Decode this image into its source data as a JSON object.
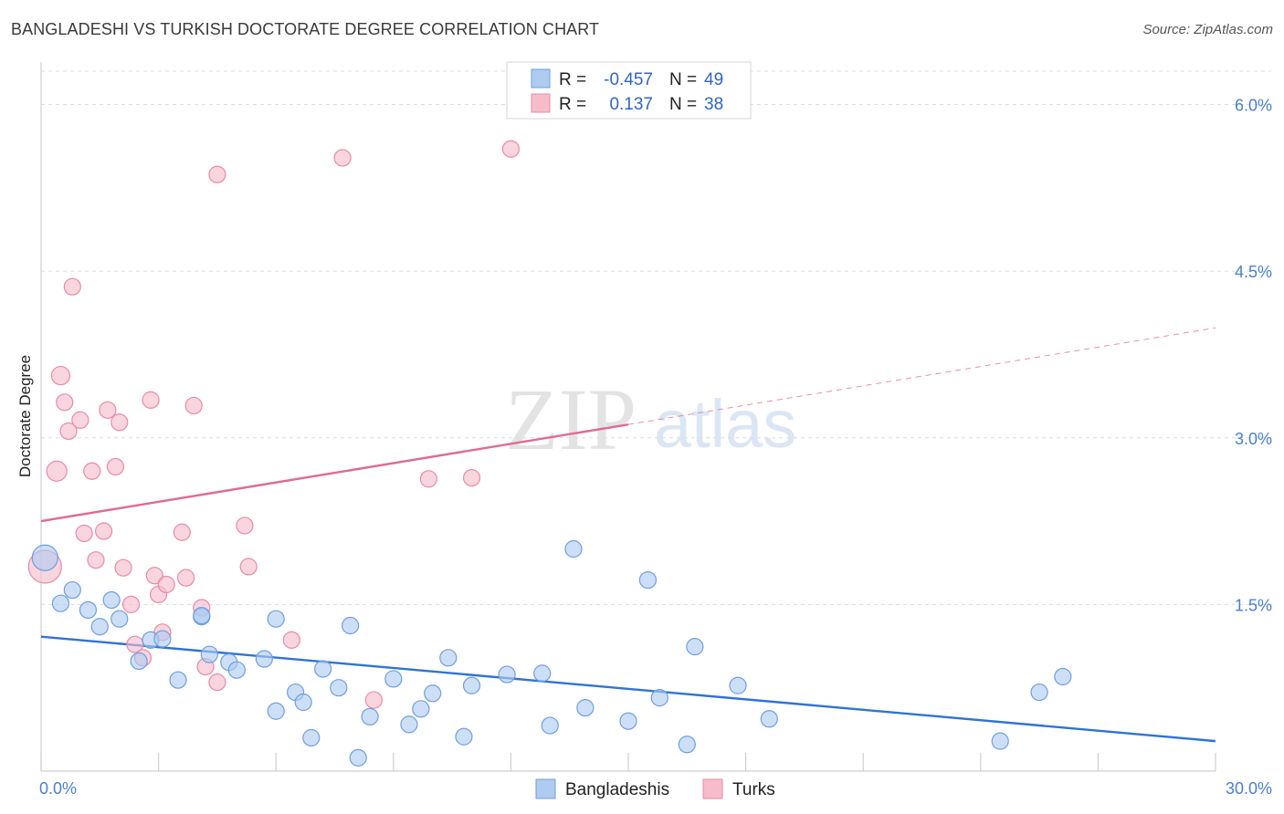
{
  "title": "BANGLADESHI VS TURKISH DOCTORATE DEGREE CORRELATION CHART",
  "source": "Source: ZipAtlas.com",
  "watermark": {
    "zip": "ZIP",
    "atlas": "atlas"
  },
  "colors": {
    "blue_fill": "#aecbf0",
    "blue_stroke": "#6e9fe0",
    "blue_line": "#2f73d4",
    "pink_fill": "#f6bccb",
    "pink_stroke": "#ea8aa5",
    "pink_line": "#e06a8f",
    "grid": "#dcdcdc",
    "axis_label": "#4a7fd1"
  },
  "legend_top": {
    "rows": [
      {
        "r_label": "R =",
        "r_value": "-0.457",
        "n_label": "N =",
        "n_value": "49",
        "series": "blue"
      },
      {
        "r_label": "R =",
        "r_value": "0.137",
        "n_label": "N =",
        "n_value": "38",
        "series": "pink"
      }
    ]
  },
  "legend_bottom": [
    {
      "label": "Bangladeshis",
      "series": "blue"
    },
    {
      "label": "Turks",
      "series": "pink"
    }
  ],
  "chart_data": {
    "type": "scatter",
    "title": "BANGLADESHI VS TURKISH DOCTORATE DEGREE CORRELATION CHART",
    "xlabel": "",
    "ylabel": "Doctorate Degree",
    "xlim": [
      0,
      30
    ],
    "ylim": [
      0,
      6.3
    ],
    "x_tick_labels": [
      "0.0%",
      "30.0%"
    ],
    "y_ticks": [
      1.5,
      3.0,
      4.5,
      6.0
    ],
    "y_tick_labels": [
      "1.5%",
      "3.0%",
      "4.5%",
      "6.0%"
    ],
    "grid": true,
    "legend_placement": "top-center",
    "series": [
      {
        "name": "Bangladeshis",
        "color": "#aecbf0",
        "points": [
          [
            0.1,
            1.92,
            14
          ],
          [
            0.5,
            1.51,
            9
          ],
          [
            0.8,
            1.63,
            9
          ],
          [
            1.2,
            1.45,
            9
          ],
          [
            1.5,
            1.3,
            9
          ],
          [
            1.8,
            1.54,
            9
          ],
          [
            2.0,
            1.37,
            9
          ],
          [
            2.5,
            0.99,
            9
          ],
          [
            2.8,
            1.18,
            9
          ],
          [
            3.1,
            1.19,
            9
          ],
          [
            3.5,
            0.82,
            9
          ],
          [
            4.1,
            1.39,
            9
          ],
          [
            4.1,
            1.4,
            9
          ],
          [
            4.3,
            1.05,
            9
          ],
          [
            4.8,
            0.98,
            9
          ],
          [
            5.0,
            0.91,
            9
          ],
          [
            5.7,
            1.01,
            9
          ],
          [
            6.0,
            1.37,
            9
          ],
          [
            6.0,
            0.54,
            9
          ],
          [
            6.5,
            0.71,
            9
          ],
          [
            6.7,
            0.62,
            9
          ],
          [
            6.9,
            0.3,
            9
          ],
          [
            7.2,
            0.92,
            9
          ],
          [
            7.6,
            0.75,
            9
          ],
          [
            7.9,
            1.31,
            9
          ],
          [
            8.1,
            0.12,
            9
          ],
          [
            8.4,
            0.49,
            9
          ],
          [
            9.0,
            0.83,
            9
          ],
          [
            9.4,
            0.42,
            9
          ],
          [
            9.7,
            0.56,
            9
          ],
          [
            10.0,
            0.7,
            9
          ],
          [
            10.4,
            1.02,
            9
          ],
          [
            10.8,
            0.31,
            9
          ],
          [
            11.0,
            0.77,
            9
          ],
          [
            11.9,
            0.87,
            9
          ],
          [
            12.8,
            0.88,
            9
          ],
          [
            13.0,
            0.41,
            9
          ],
          [
            13.6,
            2.0,
            9
          ],
          [
            13.9,
            0.57,
            9
          ],
          [
            15.0,
            0.45,
            9
          ],
          [
            15.5,
            1.72,
            9
          ],
          [
            15.8,
            0.66,
            9
          ],
          [
            16.5,
            0.24,
            9
          ],
          [
            16.7,
            1.12,
            9
          ],
          [
            17.8,
            0.77,
            9
          ],
          [
            18.6,
            0.47,
            9
          ],
          [
            24.5,
            0.27,
            9
          ],
          [
            25.5,
            0.71,
            9
          ],
          [
            26.1,
            0.85,
            9
          ]
        ]
      },
      {
        "name": "Turks",
        "color": "#f6bccb",
        "points": [
          [
            0.1,
            1.84,
            18
          ],
          [
            0.4,
            2.7,
            11
          ],
          [
            0.5,
            3.56,
            10
          ],
          [
            0.6,
            3.32,
            9
          ],
          [
            0.7,
            3.06,
            9
          ],
          [
            0.8,
            4.36,
            9
          ],
          [
            1.0,
            3.16,
            9
          ],
          [
            1.1,
            2.14,
            9
          ],
          [
            1.3,
            2.7,
            9
          ],
          [
            1.4,
            1.9,
            9
          ],
          [
            1.6,
            2.16,
            9
          ],
          [
            1.7,
            3.25,
            9
          ],
          [
            1.9,
            2.74,
            9
          ],
          [
            2.0,
            3.14,
            9
          ],
          [
            2.1,
            1.83,
            9
          ],
          [
            2.3,
            1.5,
            9
          ],
          [
            2.4,
            1.14,
            9
          ],
          [
            2.6,
            1.02,
            9
          ],
          [
            2.8,
            3.34,
            9
          ],
          [
            2.9,
            1.76,
            9
          ],
          [
            3.0,
            1.59,
            9
          ],
          [
            3.1,
            1.25,
            9
          ],
          [
            3.2,
            1.68,
            9
          ],
          [
            3.6,
            2.15,
            9
          ],
          [
            3.7,
            1.74,
            9
          ],
          [
            3.9,
            3.29,
            9
          ],
          [
            4.1,
            1.47,
            9
          ],
          [
            4.2,
            0.94,
            9
          ],
          [
            4.5,
            0.8,
            9
          ],
          [
            4.5,
            5.37,
            9
          ],
          [
            5.2,
            2.21,
            9
          ],
          [
            5.3,
            1.84,
            9
          ],
          [
            6.4,
            1.18,
            9
          ],
          [
            7.7,
            5.52,
            9
          ],
          [
            8.5,
            0.64,
            9
          ],
          [
            9.9,
            2.63,
            9
          ],
          [
            11.0,
            2.64,
            9
          ],
          [
            12.0,
            5.6,
            9
          ]
        ]
      }
    ],
    "trendlines": [
      {
        "series": "Bangladeshis",
        "x": [
          0,
          30
        ],
        "y": [
          1.21,
          0.27
        ],
        "style": "solid"
      },
      {
        "series": "Turks",
        "x": [
          0,
          15
        ],
        "y": [
          2.25,
          3.12
        ],
        "style": "solid"
      },
      {
        "series": "Turks",
        "x": [
          15,
          30
        ],
        "y": [
          3.12,
          3.99
        ],
        "style": "dashed"
      }
    ]
  }
}
